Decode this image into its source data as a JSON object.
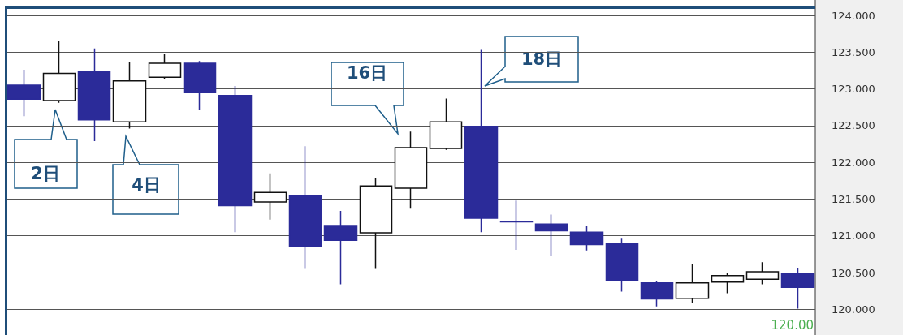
{
  "chart_data": {
    "type": "candlestick",
    "categories": [
      null,
      null,
      null,
      null,
      null,
      null,
      null,
      null,
      null,
      null,
      null,
      null,
      null,
      null,
      null,
      null,
      null,
      null,
      null,
      null,
      null,
      null,
      null
    ],
    "ohlc": [
      [
        123.05,
        123.26,
        122.63,
        122.86
      ],
      [
        122.84,
        123.65,
        122.81,
        123.21
      ],
      [
        123.23,
        123.55,
        122.29,
        122.58
      ],
      [
        122.55,
        123.37,
        122.46,
        123.11
      ],
      [
        123.16,
        123.47,
        123.14,
        123.35
      ],
      [
        123.35,
        123.38,
        122.71,
        122.95
      ],
      [
        122.91,
        123.04,
        121.05,
        121.41
      ],
      [
        121.46,
        121.85,
        121.22,
        121.59
      ],
      [
        121.55,
        122.22,
        120.55,
        120.85
      ],
      [
        121.13,
        121.34,
        120.34,
        120.94
      ],
      [
        121.04,
        121.79,
        120.55,
        121.68
      ],
      [
        121.65,
        122.42,
        121.37,
        122.2
      ],
      [
        122.19,
        122.87,
        122.17,
        122.55
      ],
      [
        122.49,
        123.53,
        121.05,
        121.24
      ],
      [
        121.2,
        121.48,
        120.81,
        121.19
      ],
      [
        121.16,
        121.29,
        120.72,
        121.07
      ],
      [
        121.05,
        121.13,
        120.8,
        120.88
      ],
      [
        120.89,
        120.96,
        120.24,
        120.39
      ],
      [
        120.36,
        120.38,
        120.04,
        120.14
      ],
      [
        120.15,
        120.62,
        120.08,
        120.36
      ],
      [
        120.37,
        120.49,
        120.22,
        120.46
      ],
      [
        120.41,
        120.64,
        120.34,
        120.51
      ],
      [
        120.49,
        120.56,
        120.01,
        120.3
      ]
    ],
    "ylim": [
      119.65,
      124.1
    ],
    "yticks": [
      {
        "value": 120,
        "label": "120.000"
      },
      {
        "value": 120.5,
        "label": "120.500"
      },
      {
        "value": 121,
        "label": "121.000"
      },
      {
        "value": 121.5,
        "label": "121.500"
      },
      {
        "value": 122,
        "label": "122.000"
      },
      {
        "value": 122.5,
        "label": "122.500"
      },
      {
        "value": 123,
        "label": "123.000"
      },
      {
        "value": 123.5,
        "label": "123.500"
      },
      {
        "value": 124,
        "label": "124.000"
      }
    ],
    "grid": "y",
    "tick_labels": "y",
    "annotations": [
      "2日",
      "4日",
      "16日",
      "18日",
      "120.00"
    ]
  }
}
